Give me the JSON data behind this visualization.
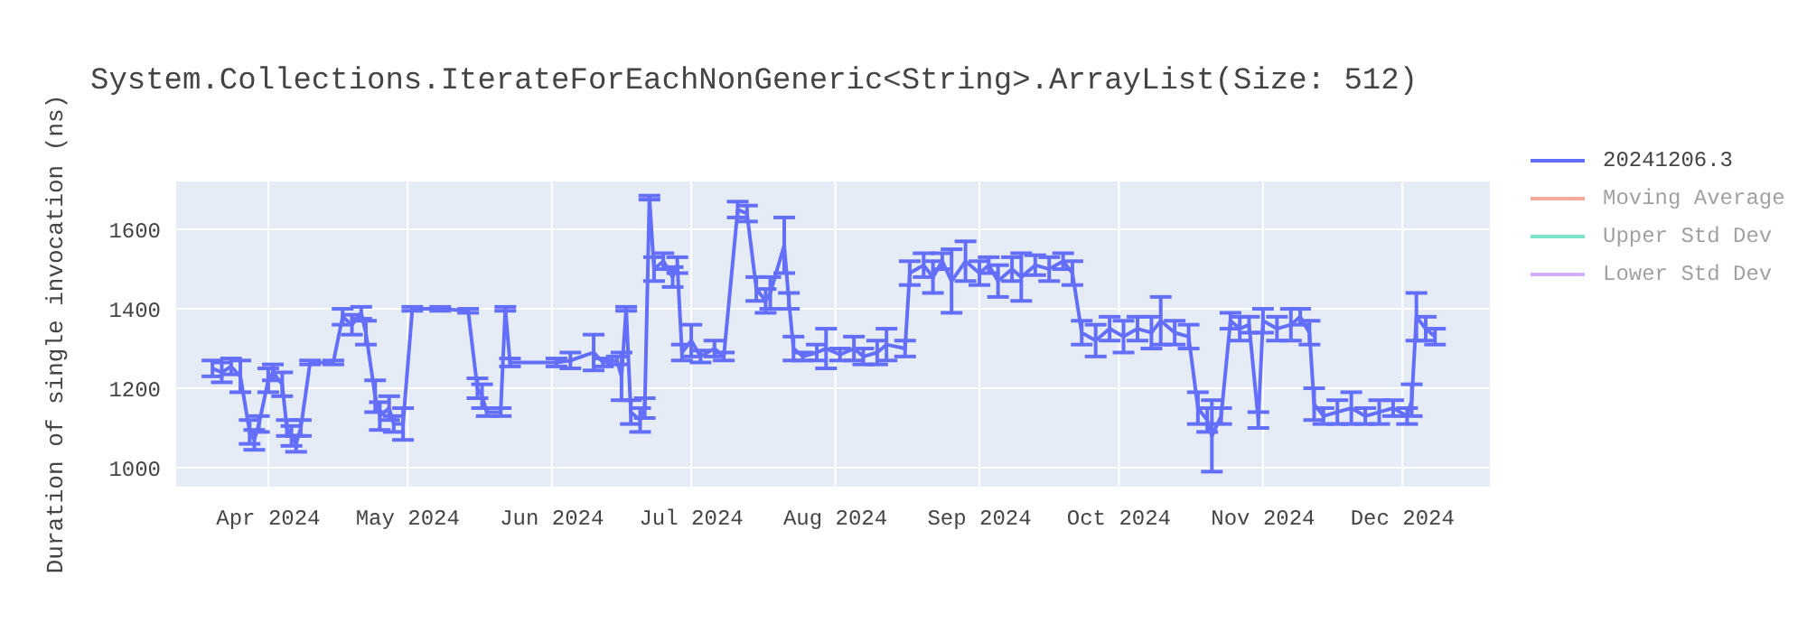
{
  "chart_data": {
    "type": "line",
    "title": "System.Collections.IterateForEachNonGeneric<String>.ArrayList(Size: 512)",
    "ylabel": "Duration of single invocation (ns)",
    "x": [
      "2024-03-20",
      "2024-03-22",
      "2024-03-24",
      "2024-03-26",
      "2024-03-28",
      "2024-03-29",
      "2024-03-30",
      "2024-04-01",
      "2024-04-02",
      "2024-04-04",
      "2024-04-05",
      "2024-04-06",
      "2024-04-07",
      "2024-04-08",
      "2024-04-10",
      "2024-04-15",
      "2024-04-17",
      "2024-04-19",
      "2024-04-21",
      "2024-04-22",
      "2024-04-24",
      "2024-04-25",
      "2024-04-27",
      "2024-04-28",
      "2024-04-30",
      "2024-05-02",
      "2024-05-08",
      "2024-05-14",
      "2024-05-16",
      "2024-05-17",
      "2024-05-18",
      "2024-05-21",
      "2024-05-22",
      "2024-05-23",
      "2024-06-02",
      "2024-06-05",
      "2024-06-10",
      "2024-06-12",
      "2024-06-15",
      "2024-06-16",
      "2024-06-17",
      "2024-06-18",
      "2024-06-20",
      "2024-06-21",
      "2024-06-22",
      "2024-06-23",
      "2024-06-25",
      "2024-06-27",
      "2024-06-28",
      "2024-06-29",
      "2024-07-01",
      "2024-07-03",
      "2024-07-06",
      "2024-07-08",
      "2024-07-11",
      "2024-07-13",
      "2024-07-15",
      "2024-07-17",
      "2024-07-18",
      "2024-07-21",
      "2024-07-22",
      "2024-07-23",
      "2024-07-25",
      "2024-07-28",
      "2024-07-30",
      "2024-08-02",
      "2024-08-05",
      "2024-08-07",
      "2024-08-10",
      "2024-08-12",
      "2024-08-16",
      "2024-08-17",
      "2024-08-20",
      "2024-08-22",
      "2024-08-24",
      "2024-08-26",
      "2024-08-29",
      "2024-09-01",
      "2024-09-03",
      "2024-09-05",
      "2024-09-08",
      "2024-09-10",
      "2024-09-13",
      "2024-09-16",
      "2024-09-19",
      "2024-09-21",
      "2024-09-23",
      "2024-09-26",
      "2024-09-29",
      "2024-10-02",
      "2024-10-05",
      "2024-10-08",
      "2024-10-10",
      "2024-10-13",
      "2024-10-16",
      "2024-10-18",
      "2024-10-20",
      "2024-10-21",
      "2024-10-23",
      "2024-10-25",
      "2024-10-27",
      "2024-10-29",
      "2024-10-31",
      "2024-11-01",
      "2024-11-04",
      "2024-11-07",
      "2024-11-09",
      "2024-11-11",
      "2024-11-12",
      "2024-11-14",
      "2024-11-17",
      "2024-11-20",
      "2024-11-23",
      "2024-11-26",
      "2024-11-29",
      "2024-12-02",
      "2024-12-03",
      "2024-12-04",
      "2024-12-06",
      "2024-12-08"
    ],
    "series": [
      {
        "name": "20241206.3",
        "color": "#636efa",
        "values": [
          1250,
          1240,
          1255,
          1230,
          1090,
          1070,
          1110,
          1220,
          1240,
          1210,
          1100,
          1080,
          1060,
          1100,
          1265,
          1265,
          1380,
          1360,
          1390,
          1340,
          1180,
          1130,
          1150,
          1110,
          1110,
          1400,
          1400,
          1395,
          1200,
          1180,
          1140,
          1140,
          1400,
          1265,
          1265,
          1270,
          1290,
          1265,
          1270,
          1230,
          1400,
          1140,
          1120,
          1150,
          1680,
          1500,
          1520,
          1480,
          1510,
          1290,
          1320,
          1280,
          1300,
          1280,
          1650,
          1640,
          1450,
          1420,
          1440,
          1560,
          1420,
          1300,
          1280,
          1290,
          1300,
          1285,
          1300,
          1280,
          1290,
          1310,
          1300,
          1490,
          1510,
          1480,
          1520,
          1470,
          1520,
          1490,
          1510,
          1470,
          1500,
          1480,
          1510,
          1500,
          1520,
          1490,
          1340,
          1320,
          1350,
          1330,
          1350,
          1340,
          1370,
          1340,
          1330,
          1150,
          1120,
          1080,
          1130,
          1370,
          1350,
          1360,
          1120,
          1370,
          1350,
          1360,
          1380,
          1340,
          1160,
          1130,
          1140,
          1150,
          1130,
          1140,
          1150,
          1130,
          1170,
          1380,
          1350,
          1330
        ],
        "errors": [
          20,
          25,
          20,
          40,
          30,
          25,
          20,
          30,
          20,
          30,
          20,
          25,
          20,
          20,
          5,
          5,
          20,
          25,
          15,
          30,
          40,
          35,
          30,
          20,
          40,
          5,
          5,
          5,
          25,
          30,
          10,
          10,
          5,
          10,
          10,
          20,
          45,
          10,
          10,
          60,
          5,
          30,
          30,
          25,
          5,
          30,
          20,
          25,
          20,
          20,
          40,
          15,
          20,
          10,
          20,
          20,
          30,
          30,
          40,
          70,
          20,
          30,
          10,
          20,
          50,
          15,
          30,
          20,
          30,
          40,
          20,
          30,
          30,
          40,
          20,
          80,
          50,
          30,
          20,
          40,
          30,
          60,
          25,
          30,
          20,
          30,
          30,
          40,
          30,
          40,
          30,
          40,
          60,
          30,
          30,
          40,
          30,
          90,
          20,
          20,
          30,
          20,
          20,
          30,
          30,
          40,
          20,
          30,
          40,
          20,
          30,
          40,
          20,
          30,
          20,
          20,
          40,
          60,
          30,
          20
        ]
      },
      {
        "name": "Moving Average",
        "color": "#ef553b",
        "values": [
          null,
          null,
          null,
          null,
          null,
          null,
          null,
          null,
          null,
          null,
          null,
          null,
          null,
          null,
          null,
          null,
          null,
          null,
          null,
          null,
          null,
          null,
          null,
          null,
          null,
          null,
          null,
          null,
          null,
          null,
          null,
          null,
          null,
          null,
          null,
          null,
          null,
          null,
          null,
          null,
          null,
          null,
          null,
          null,
          null,
          null,
          null,
          null,
          null,
          null,
          null,
          null,
          null,
          null,
          null,
          null,
          null,
          null,
          null,
          null,
          null,
          null,
          null,
          null,
          null,
          null,
          null,
          null,
          null,
          null,
          null,
          null,
          null,
          null,
          null,
          null,
          null,
          null,
          null,
          null,
          null,
          null,
          null,
          null,
          null,
          null,
          null,
          null,
          null,
          null,
          null,
          null,
          null,
          null,
          null,
          null,
          null,
          null,
          null,
          null,
          null,
          null,
          null,
          null,
          null,
          null,
          null,
          null,
          null,
          null,
          null,
          null,
          null,
          null,
          null,
          null,
          null,
          null,
          null,
          null
        ]
      },
      {
        "name": "Upper Std Dev",
        "color": "#00cc96",
        "values": [
          null,
          null,
          null,
          null,
          null,
          null,
          null,
          null,
          null,
          null,
          null,
          null,
          null,
          null,
          null,
          null,
          null,
          null,
          null,
          null,
          null,
          null,
          null,
          null,
          null,
          null,
          null,
          null,
          null,
          null,
          null,
          null,
          null,
          null,
          null,
          null,
          null,
          null,
          null,
          null,
          null,
          null,
          null,
          null,
          null,
          null,
          null,
          null,
          null,
          null,
          null,
          null,
          null,
          null,
          null,
          null,
          null,
          null,
          null,
          null,
          null,
          null,
          null,
          null,
          null,
          null,
          null,
          null,
          null,
          null,
          null,
          null,
          null,
          null,
          null,
          null,
          null,
          null,
          null,
          null,
          null,
          null,
          null,
          null,
          null,
          null,
          null,
          null,
          null,
          null,
          null,
          null,
          null,
          null,
          null,
          null,
          null,
          null,
          null,
          null,
          null,
          null,
          null,
          null,
          null,
          null,
          null,
          null,
          null,
          null,
          null,
          null,
          null,
          null,
          null,
          null,
          null,
          null,
          null,
          null
        ]
      },
      {
        "name": "Lower Std Dev",
        "color": "#ab63fa",
        "values": [
          null,
          null,
          null,
          null,
          null,
          null,
          null,
          null,
          null,
          null,
          null,
          null,
          null,
          null,
          null,
          null,
          null,
          null,
          null,
          null,
          null,
          null,
          null,
          null,
          null,
          null,
          null,
          null,
          null,
          null,
          null,
          null,
          null,
          null,
          null,
          null,
          null,
          null,
          null,
          null,
          null,
          null,
          null,
          null,
          null,
          null,
          null,
          null,
          null,
          null,
          null,
          null,
          null,
          null,
          null,
          null,
          null,
          null,
          null,
          null,
          null,
          null,
          null,
          null,
          null,
          null,
          null,
          null,
          null,
          null,
          null,
          null,
          null,
          null,
          null,
          null,
          null,
          null,
          null,
          null,
          null,
          null,
          null,
          null,
          null,
          null,
          null,
          null,
          null,
          null,
          null,
          null,
          null,
          null,
          null,
          null,
          null,
          null,
          null,
          null,
          null,
          null,
          null,
          null,
          null,
          null,
          null,
          null,
          null,
          null,
          null,
          null,
          null,
          null,
          null,
          null,
          null,
          null,
          null,
          null
        ]
      }
    ],
    "xlim": [
      "2024-03-12",
      "2024-12-20"
    ],
    "xticks": [
      {
        "value": "2024-04-01",
        "label": "Apr 2024"
      },
      {
        "value": "2024-05-01",
        "label": "May 2024"
      },
      {
        "value": "2024-06-01",
        "label": "Jun 2024"
      },
      {
        "value": "2024-07-01",
        "label": "Jul 2024"
      },
      {
        "value": "2024-08-01",
        "label": "Aug 2024"
      },
      {
        "value": "2024-09-01",
        "label": "Sep 2024"
      },
      {
        "value": "2024-10-01",
        "label": "Oct 2024"
      },
      {
        "value": "2024-11-01",
        "label": "Nov 2024"
      },
      {
        "value": "2024-12-01",
        "label": "Dec 2024"
      }
    ],
    "ylim": [
      950,
      1723
    ],
    "yticks": [
      1000,
      1200,
      1400,
      1600
    ],
    "grid": true,
    "legend": "top right"
  }
}
